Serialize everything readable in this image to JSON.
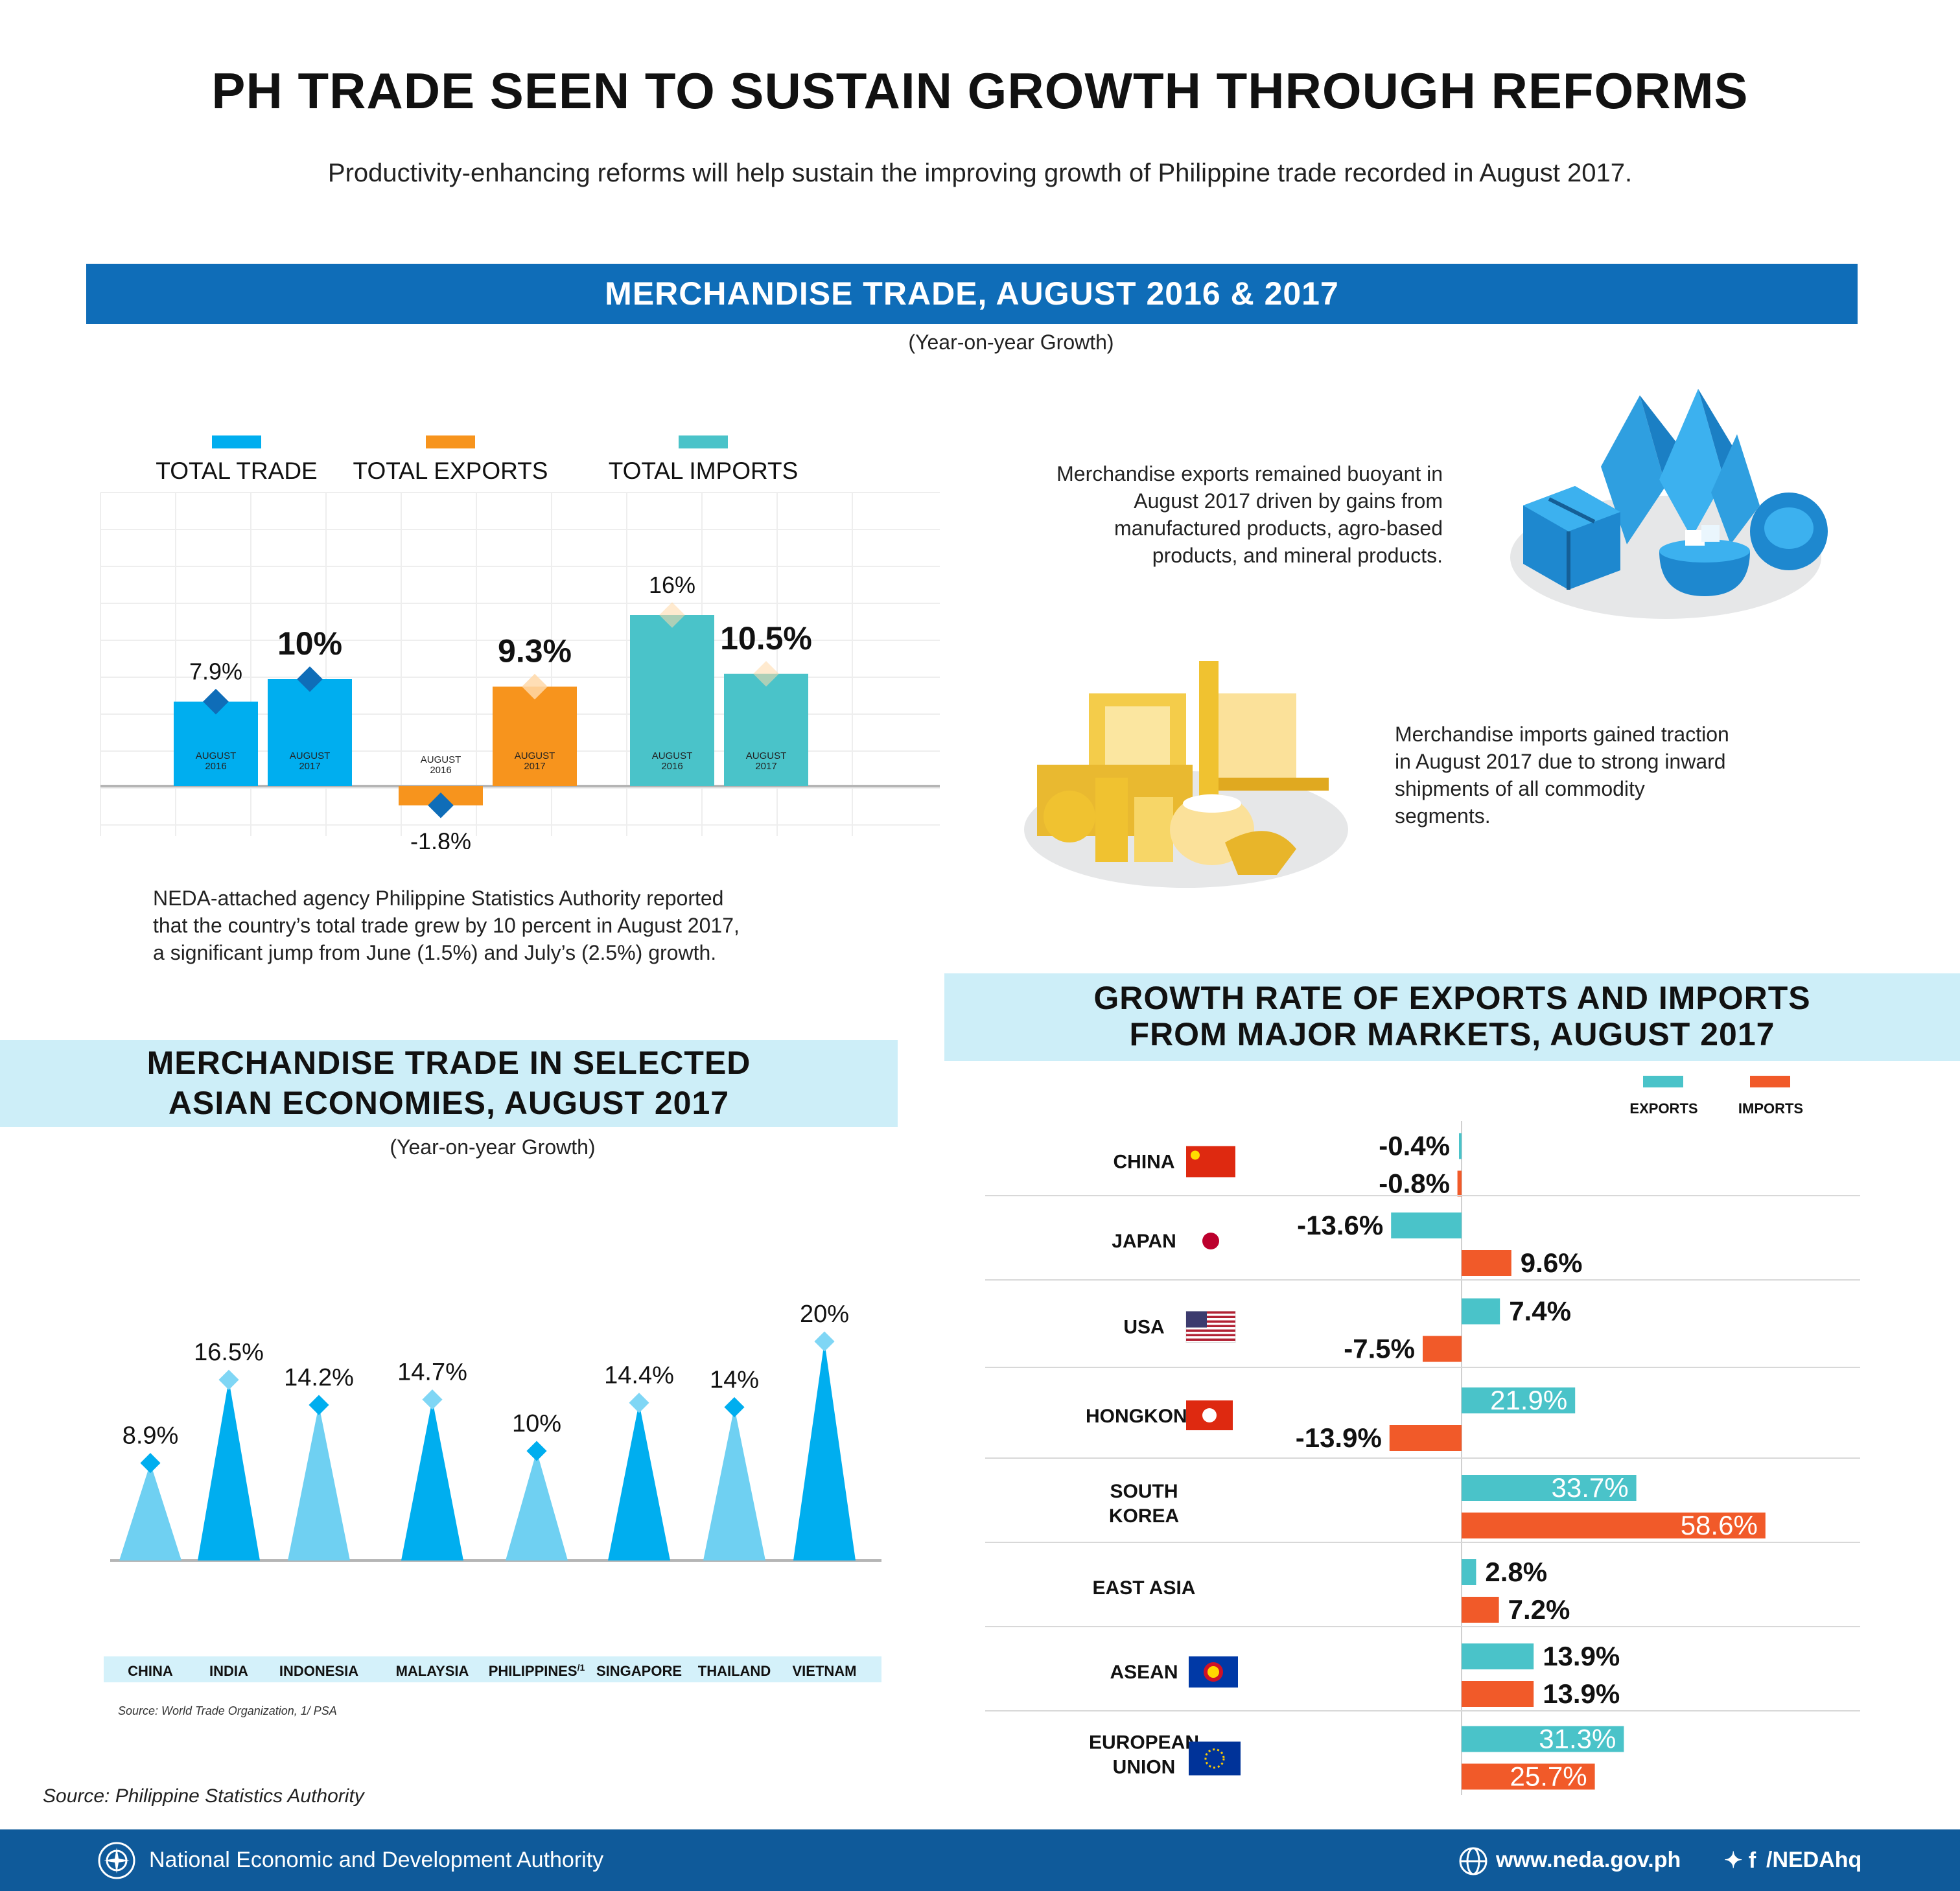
{
  "header": {
    "title": "PH TRADE SEEN TO SUSTAIN GROWTH THROUGH REFORMS",
    "subtitle": "Productivity-enhancing reforms will help sustain the improving growth of Philippine trade recorded in August 2017."
  },
  "section1": {
    "title": "MERCHANDISE TRADE, AUGUST 2016 & 2017",
    "note": "(Year-on-year Growth)",
    "para_bottom": [
      "NEDA-attached agency Philippine Statistics Authority reported",
      "that the country’s total trade grew by 10 percent in August 2017,",
      "a significant jump from June (1.5%) and July’s (2.5%) growth."
    ],
    "exports_text": [
      "Merchandise exports remained buoyant in",
      "August 2017 driven by gains from",
      "manufactured products, agro-based",
      "products, and mineral products."
    ],
    "imports_text": [
      "Merchandise imports gained traction",
      "in August 2017 due to strong inward",
      "shipments of all commodity",
      "segments."
    ]
  },
  "section2": {
    "title_lines": [
      "MERCHANDISE TRADE IN SELECTED",
      "ASIAN ECONOMIES, AUGUST 2017"
    ],
    "note": "(Year-on-year Growth)",
    "source": "Source: World Trade Organization, 1/ PSA"
  },
  "section3": {
    "title_lines": [
      "GROWTH RATE OF EXPORTS AND IMPORTS",
      "FROM MAJOR MARKETS, AUGUST 2017"
    ]
  },
  "source_main": "Source: Philippine Statistics Authority",
  "footer": {
    "org": "National Economic and Development Authority",
    "website": "www.neda.gov.ph",
    "social": "/NEDAhq",
    "social_glyphs": "✦ f"
  },
  "colors": {
    "blue_band": "#0f6db8",
    "trade": "#00aeef",
    "exports": "#f7941d",
    "imports": "#4ac3c9",
    "bar_imports_orange": "#f15a29",
    "light_band": "#cdeef8",
    "footer": "#0f5a9a"
  },
  "chart_data": [
    {
      "type": "bar",
      "title": "MERCHANDISE TRADE, AUGUST 2016 & 2017",
      "categories": [
        "TOTAL TRADE",
        "TOTAL EXPORTS",
        "TOTAL IMPORTS"
      ],
      "x_tick_labels": [
        [
          "AUGUST",
          "2016"
        ],
        [
          "AUGUST",
          "2017"
        ]
      ],
      "series": [
        {
          "name": "AUGUST 2016",
          "values": [
            7.9,
            -1.8,
            16
          ],
          "labels": [
            "7.9%",
            "-1.8%",
            "16%"
          ]
        },
        {
          "name": "AUGUST 2017",
          "values": [
            10,
            9.3,
            10.5
          ],
          "labels": [
            "10%",
            "9.3%",
            "10.5%"
          ]
        }
      ],
      "ylim": [
        -4,
        20
      ],
      "legend": "top"
    },
    {
      "type": "bar",
      "title": "MERCHANDISE TRADE IN SELECTED ASIAN ECONOMIES, AUGUST 2017",
      "categories": [
        "CHINA",
        "INDIA",
        "INDONESIA",
        "MALAYSIA",
        "PHILIPPINES",
        "SINGAPORE",
        "THAILAND",
        "VIETNAM"
      ],
      "category_suffix": [
        "",
        "",
        "",
        "",
        "/1",
        "",
        "",
        ""
      ],
      "values": [
        8.9,
        16.5,
        14.2,
        14.7,
        10,
        14.4,
        14,
        20
      ],
      "labels": [
        "8.9%",
        "16.5%",
        "14.2%",
        "14.7%",
        "10%",
        "14.4%",
        "14%",
        "20%"
      ],
      "ylim": [
        0,
        22
      ]
    },
    {
      "type": "bar",
      "orientation": "horizontal",
      "title": "GROWTH RATE OF EXPORTS AND IMPORTS FROM MAJOR MARKETS, AUGUST 2017",
      "categories": [
        [
          "CHINA"
        ],
        [
          "JAPAN"
        ],
        [
          "USA"
        ],
        [
          "HONGKONG"
        ],
        [
          "SOUTH",
          "KOREA"
        ],
        [
          "EAST ASIA"
        ],
        [
          "ASEAN"
        ],
        [
          "EUROPEAN",
          "UNION"
        ]
      ],
      "series": [
        {
          "name": "EXPORTS",
          "values": [
            -0.4,
            -13.6,
            7.4,
            21.9,
            33.7,
            2.8,
            13.9,
            31.3
          ],
          "labels": [
            "-0.4%",
            "-13.6%",
            "7.4%",
            "21.9%",
            "33.7%",
            "2.8%",
            "13.9%",
            "31.3%"
          ]
        },
        {
          "name": "IMPORTS",
          "values": [
            -0.8,
            9.6,
            -7.5,
            -13.9,
            58.6,
            7.2,
            13.9,
            25.7
          ],
          "labels": [
            "-0.8%",
            "9.6%",
            "-7.5%",
            "-13.9%",
            "58.6%",
            "7.2%",
            "13.9%",
            "25.7%"
          ]
        }
      ],
      "legend": "top-right"
    }
  ]
}
